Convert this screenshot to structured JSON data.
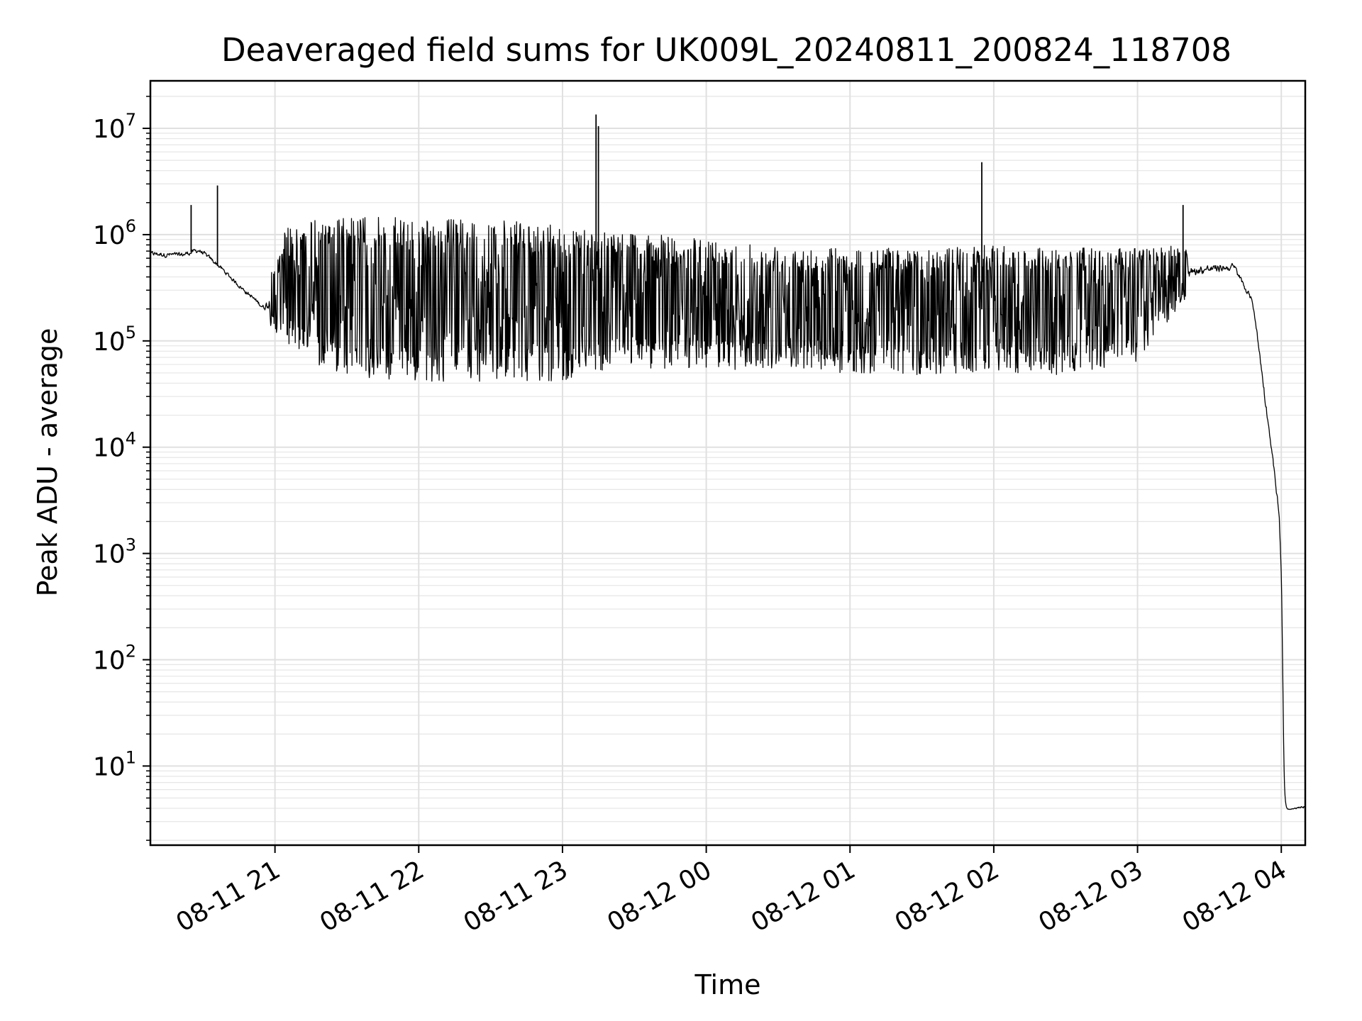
{
  "chart_data": {
    "type": "line",
    "title": "Deaveraged field sums for UK009L_20240811_200824_118708",
    "xlabel": "Time",
    "ylabel": "Peak ADU - average",
    "yscale": "log",
    "ylim": [
      1.8,
      28000000
    ],
    "xlim": [
      "2024-08-11 20:08",
      "2024-08-12 04:10"
    ],
    "x_ticks": [
      {
        "label": "08-11 21",
        "time": "2024-08-11 21:00"
      },
      {
        "label": "08-11 22",
        "time": "2024-08-11 22:00"
      },
      {
        "label": "08-11 23",
        "time": "2024-08-11 23:00"
      },
      {
        "label": "08-12 00",
        "time": "2024-08-12 00:00"
      },
      {
        "label": "08-12 01",
        "time": "2024-08-12 01:00"
      },
      {
        "label": "08-12 02",
        "time": "2024-08-12 02:00"
      },
      {
        "label": "08-12 03",
        "time": "2024-08-12 03:00"
      },
      {
        "label": "08-12 04",
        "time": "2024-08-12 04:00"
      }
    ],
    "y_ticks": [
      {
        "base": "10",
        "exp": "1",
        "value": 10
      },
      {
        "base": "10",
        "exp": "2",
        "value": 100
      },
      {
        "base": "10",
        "exp": "3",
        "value": 1000
      },
      {
        "base": "10",
        "exp": "4",
        "value": 10000
      },
      {
        "base": "10",
        "exp": "5",
        "value": 100000
      },
      {
        "base": "10",
        "exp": "6",
        "value": 1000000
      },
      {
        "base": "10",
        "exp": "7",
        "value": 10000000
      }
    ],
    "grid": true,
    "line_color": "#000000",
    "series": [
      {
        "trend": [
          {
            "x": "2024-08-11 20:08",
            "low": 550000,
            "high": 800000
          },
          {
            "x": "2024-08-11 20:20",
            "low": 520000,
            "high": 780000
          },
          {
            "x": "2024-08-11 20:28",
            "low": 600000,
            "high": 850000
          },
          {
            "x": "2024-08-11 20:35",
            "low": 450000,
            "high": 650000
          },
          {
            "x": "2024-08-11 20:45",
            "low": 280000,
            "high": 380000
          },
          {
            "x": "2024-08-11 20:55",
            "low": 170000,
            "high": 250000
          },
          {
            "x": "2024-08-11 21:05",
            "low": 90000,
            "high": 1300000
          },
          {
            "x": "2024-08-11 21:20",
            "low": 55000,
            "high": 1400000
          },
          {
            "x": "2024-08-11 21:40",
            "low": 42000,
            "high": 1500000
          },
          {
            "x": "2024-08-11 22:00",
            "low": 40000,
            "high": 1400000
          },
          {
            "x": "2024-08-11 22:30",
            "low": 42000,
            "high": 1400000
          },
          {
            "x": "2024-08-11 23:00",
            "low": 42000,
            "high": 1200000
          },
          {
            "x": "2024-08-11 23:20",
            "low": 55000,
            "high": 1100000
          },
          {
            "x": "2024-08-12 00:00",
            "low": 55000,
            "high": 900000
          },
          {
            "x": "2024-08-12 00:30",
            "low": 52000,
            "high": 800000
          },
          {
            "x": "2024-08-12 01:00",
            "low": 50000,
            "high": 750000
          },
          {
            "x": "2024-08-12 01:30",
            "low": 48000,
            "high": 750000
          },
          {
            "x": "2024-08-12 02:00",
            "low": 50000,
            "high": 800000
          },
          {
            "x": "2024-08-12 02:30",
            "low": 48000,
            "high": 750000
          },
          {
            "x": "2024-08-12 03:00",
            "low": 60000,
            "high": 750000
          },
          {
            "x": "2024-08-12 03:15",
            "low": 180000,
            "high": 800000
          },
          {
            "x": "2024-08-12 03:25",
            "low": 330000,
            "high": 650000
          },
          {
            "x": "2024-08-12 03:40",
            "low": 380000,
            "high": 650000
          },
          {
            "x": "2024-08-12 03:48",
            "low": 180000,
            "high": 280000
          },
          {
            "x": "2024-08-12 03:53",
            "low": 20000,
            "high": 40000
          },
          {
            "x": "2024-08-12 03:56",
            "low": 7000,
            "high": 10000
          },
          {
            "x": "2024-08-12 03:59",
            "low": 1500,
            "high": 3000
          },
          {
            "x": "2024-08-12 04:00",
            "low": 300,
            "high": 450
          },
          {
            "x": "2024-08-12 04:01",
            "low": 3.8,
            "high": 3.8
          },
          {
            "x": "2024-08-12 04:10",
            "low": 3.8,
            "high": 4.6
          }
        ],
        "spikes": [
          {
            "x": "2024-08-11 20:25",
            "y": 1900000
          },
          {
            "x": "2024-08-11 20:36",
            "y": 2900000
          },
          {
            "x": "2024-08-11 23:14",
            "y": 13500000
          },
          {
            "x": "2024-08-11 23:15",
            "y": 10500000
          },
          {
            "x": "2024-08-12 01:55",
            "y": 4800000
          },
          {
            "x": "2024-08-12 03:19",
            "y": 1900000
          }
        ]
      }
    ]
  }
}
